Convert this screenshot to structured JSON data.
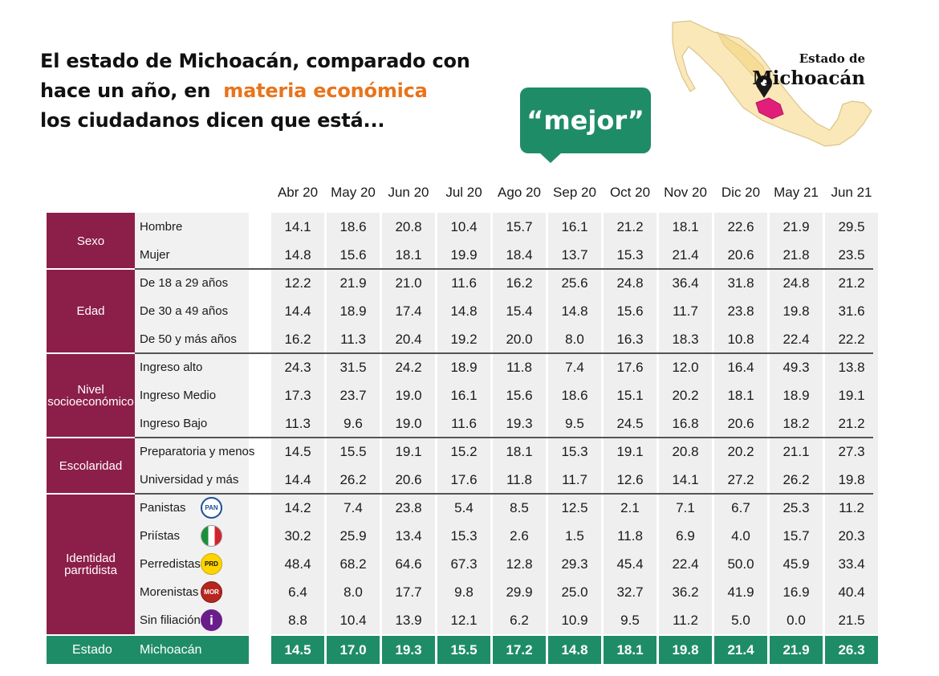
{
  "headline": {
    "line1": "El estado de Michoacán, comparado con",
    "line2_prefix": "hace un año, en",
    "line2_accent": "materia económica",
    "line3": "los ciudadanos dicen que está..."
  },
  "answer": "“mejor”",
  "map": {
    "caption_small": "Estado de",
    "caption_big": "Michoacán"
  },
  "colors": {
    "category": "#8c1f49",
    "total": "#1f8c68",
    "accent": "#e8741c"
  },
  "chart_data": {
    "type": "table",
    "columns": [
      "Abr 20",
      "May 20",
      "Jun 20",
      "Jul 20",
      "Ago 20",
      "Sep 20",
      "Oct 20",
      "Nov 20",
      "Dic 20",
      "May 21",
      "Jun 21"
    ],
    "groups": [
      {
        "category": "Sexo",
        "rows": [
          {
            "label": "Hombre",
            "values": [
              "14.1",
              "18.6",
              "20.8",
              "10.4",
              "15.7",
              "16.1",
              "21.2",
              "18.1",
              "22.6",
              "21.9",
              "29.5"
            ]
          },
          {
            "label": "Mujer",
            "values": [
              "14.8",
              "15.6",
              "18.1",
              "19.9",
              "18.4",
              "13.7",
              "15.3",
              "21.4",
              "20.6",
              "21.8",
              "23.5"
            ]
          }
        ]
      },
      {
        "category": "Edad",
        "rows": [
          {
            "label": "De 18 a 29 años",
            "values": [
              "12.2",
              "21.9",
              "21.0",
              "11.6",
              "16.2",
              "25.6",
              "24.8",
              "36.4",
              "31.8",
              "24.8",
              "21.2"
            ]
          },
          {
            "label": "De 30 a 49 años",
            "values": [
              "14.4",
              "18.9",
              "17.4",
              "14.8",
              "15.4",
              "14.8",
              "15.6",
              "11.7",
              "23.8",
              "19.8",
              "31.6"
            ]
          },
          {
            "label": "De 50 y más años",
            "values": [
              "16.2",
              "11.3",
              "20.4",
              "19.2",
              "20.0",
              "8.0",
              "16.3",
              "18.3",
              "10.8",
              "22.4",
              "22.2"
            ]
          }
        ]
      },
      {
        "category": "Nivel socioeconómico",
        "rows": [
          {
            "label": "Ingreso alto",
            "values": [
              "24.3",
              "31.5",
              "24.2",
              "18.9",
              "11.8",
              "7.4",
              "17.6",
              "12.0",
              "16.4",
              "49.3",
              "13.8"
            ]
          },
          {
            "label": "Ingreso Medio",
            "values": [
              "17.3",
              "23.7",
              "19.0",
              "16.1",
              "15.6",
              "18.6",
              "15.1",
              "20.2",
              "18.1",
              "18.9",
              "19.1"
            ]
          },
          {
            "label": "Ingreso Bajo",
            "values": [
              "11.3",
              "9.6",
              "19.0",
              "11.6",
              "19.3",
              "9.5",
              "24.5",
              "16.8",
              "20.6",
              "18.2",
              "21.2"
            ]
          }
        ]
      },
      {
        "category": "Escolaridad",
        "rows": [
          {
            "label": "Preparatoria y menos",
            "values": [
              "14.5",
              "15.5",
              "19.1",
              "15.2",
              "18.1",
              "15.3",
              "19.1",
              "20.8",
              "20.2",
              "21.1",
              "27.3"
            ]
          },
          {
            "label": "Universidad y más",
            "values": [
              "14.4",
              "26.2",
              "20.6",
              "17.6",
              "11.8",
              "11.7",
              "12.6",
              "14.1",
              "27.2",
              "26.2",
              "19.8"
            ]
          }
        ]
      },
      {
        "category": "Identidad parrtidista",
        "rows": [
          {
            "label": "Panistas",
            "icon": "pan-logo-icon",
            "values": [
              "14.2",
              "7.4",
              "23.8",
              "5.4",
              "8.5",
              "12.5",
              "2.1",
              "7.1",
              "6.7",
              "25.3",
              "11.2"
            ]
          },
          {
            "label": "Priístas",
            "icon": "pri-logo-icon",
            "values": [
              "30.2",
              "25.9",
              "13.4",
              "15.3",
              "2.6",
              "1.5",
              "11.8",
              "6.9",
              "4.0",
              "15.7",
              "20.3"
            ]
          },
          {
            "label": "Perredistas",
            "icon": "prd-logo-icon",
            "values": [
              "48.4",
              "68.2",
              "64.6",
              "67.3",
              "12.8",
              "29.3",
              "45.4",
              "22.4",
              "50.0",
              "45.9",
              "33.4"
            ]
          },
          {
            "label": "Morenistas",
            "icon": "morena-logo-icon",
            "values": [
              "6.4",
              "8.0",
              "17.7",
              "9.8",
              "29.9",
              "25.0",
              "32.7",
              "36.2",
              "41.9",
              "16.9",
              "40.4"
            ]
          },
          {
            "label": "Sin filiación",
            "icon": "info-icon",
            "values": [
              "8.8",
              "10.4",
              "13.9",
              "12.1",
              "6.2",
              "10.9",
              "9.5",
              "11.2",
              "5.0",
              "0.0",
              "21.5"
            ]
          }
        ]
      }
    ],
    "total": {
      "category": "Estado",
      "label": "Michoacán",
      "values": [
        "14.5",
        "17.0",
        "19.3",
        "15.5",
        "17.2",
        "14.8",
        "18.1",
        "19.8",
        "21.4",
        "21.9",
        "26.3"
      ]
    }
  }
}
